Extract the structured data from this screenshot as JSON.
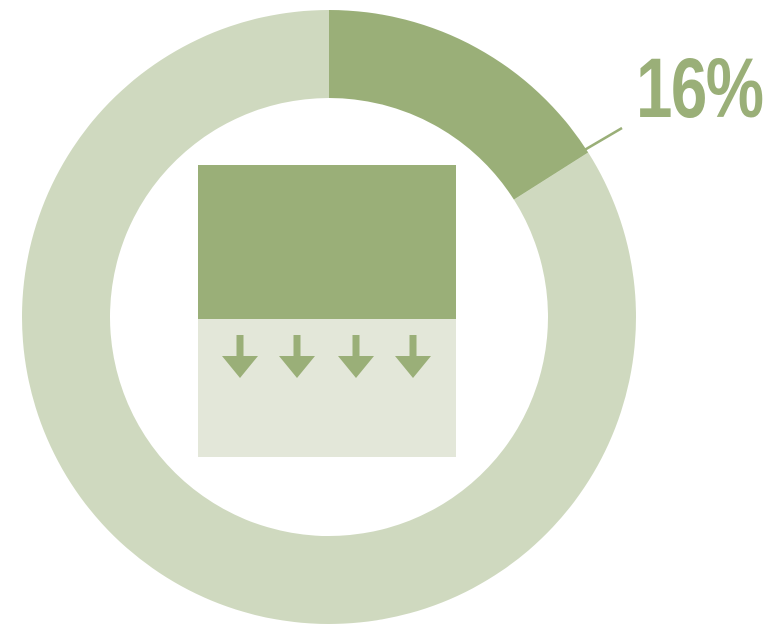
{
  "chart_data": {
    "type": "donut",
    "value_percent": 16,
    "label": "16%",
    "segments": [
      {
        "value": 16,
        "color": "#9aaf78"
      },
      {
        "value": 84,
        "color": "#cfd9bf"
      }
    ]
  },
  "colors": {
    "accent": "#9aaf78",
    "muted": "#cfd9bf",
    "icon_light": "#e3e7d9",
    "background": "#ffffff"
  },
  "icon": {
    "name": "drain-down-icon",
    "arrow_count": 4
  }
}
